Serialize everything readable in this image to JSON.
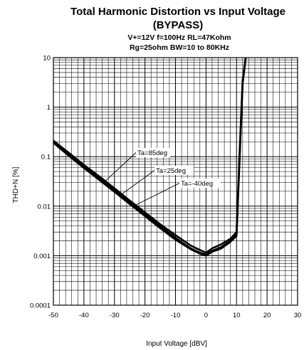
{
  "chart_data": {
    "type": "line",
    "title": "Total Harmonic Distortion vs Input Voltage",
    "title_line2": "(BYPASS)",
    "subtitle_line1": "V+=12V f=100Hz RL=47Kohm",
    "subtitle_line2": "Rg=25ohm  BW=10 to 80KHz",
    "xlabel": "Input Voltage   [dBV]",
    "ylabel": "THD+N  [%]",
    "xlim": [
      -50,
      30
    ],
    "ylim": [
      0.0001,
      10
    ],
    "yscale": "log",
    "grid": true,
    "x_ticks": [
      "-50",
      "-40",
      "-30",
      "-20",
      "-10",
      "0",
      "10",
      "20",
      "30"
    ],
    "y_ticks": [
      "10",
      "1",
      "0.1",
      "0.01",
      "0.001",
      "0.0001"
    ],
    "series": [
      {
        "name": "Ta=85deg",
        "x": [
          -50,
          -45,
          -40,
          -35,
          -30,
          -25,
          -20,
          -15,
          -10,
          -5,
          -2,
          0,
          2,
          5,
          8,
          10,
          11,
          12,
          13
        ],
        "y": [
          0.21,
          0.12,
          0.068,
          0.04,
          0.023,
          0.013,
          0.0075,
          0.0043,
          0.0026,
          0.0016,
          0.0013,
          0.00115,
          0.0014,
          0.0017,
          0.0022,
          0.003,
          0.12,
          3.5,
          10
        ]
      },
      {
        "name": "Ta=25deg",
        "x": [
          -50,
          -45,
          -40,
          -35,
          -30,
          -25,
          -20,
          -15,
          -10,
          -5,
          -2,
          0,
          2,
          5,
          8,
          10,
          11,
          12,
          13
        ],
        "y": [
          0.2,
          0.112,
          0.063,
          0.036,
          0.021,
          0.012,
          0.0068,
          0.0039,
          0.0023,
          0.0014,
          0.00115,
          0.00105,
          0.00125,
          0.0015,
          0.002,
          0.0027,
          0.1,
          3.2,
          10
        ]
      },
      {
        "name": "Ta=-40deg",
        "x": [
          -50,
          -45,
          -40,
          -35,
          -30,
          -25,
          -20,
          -15,
          -10,
          -5,
          -2,
          0,
          2,
          5,
          8,
          10,
          11,
          12,
          13
        ],
        "y": [
          0.19,
          0.105,
          0.059,
          0.034,
          0.0195,
          0.011,
          0.0063,
          0.0036,
          0.0021,
          0.00135,
          0.0011,
          0.001,
          0.0012,
          0.0014,
          0.0019,
          0.0025,
          0.09,
          3.0,
          10
        ]
      }
    ],
    "annotations": [
      {
        "text": "Ta=85deg",
        "series": "Ta=85deg",
        "point_x": -33
      },
      {
        "text": "Ta=25deg",
        "series": "Ta=25deg",
        "point_x": -28
      },
      {
        "text": "Ta=-40deg",
        "series": "Ta=-40deg",
        "point_x": -24
      }
    ]
  }
}
